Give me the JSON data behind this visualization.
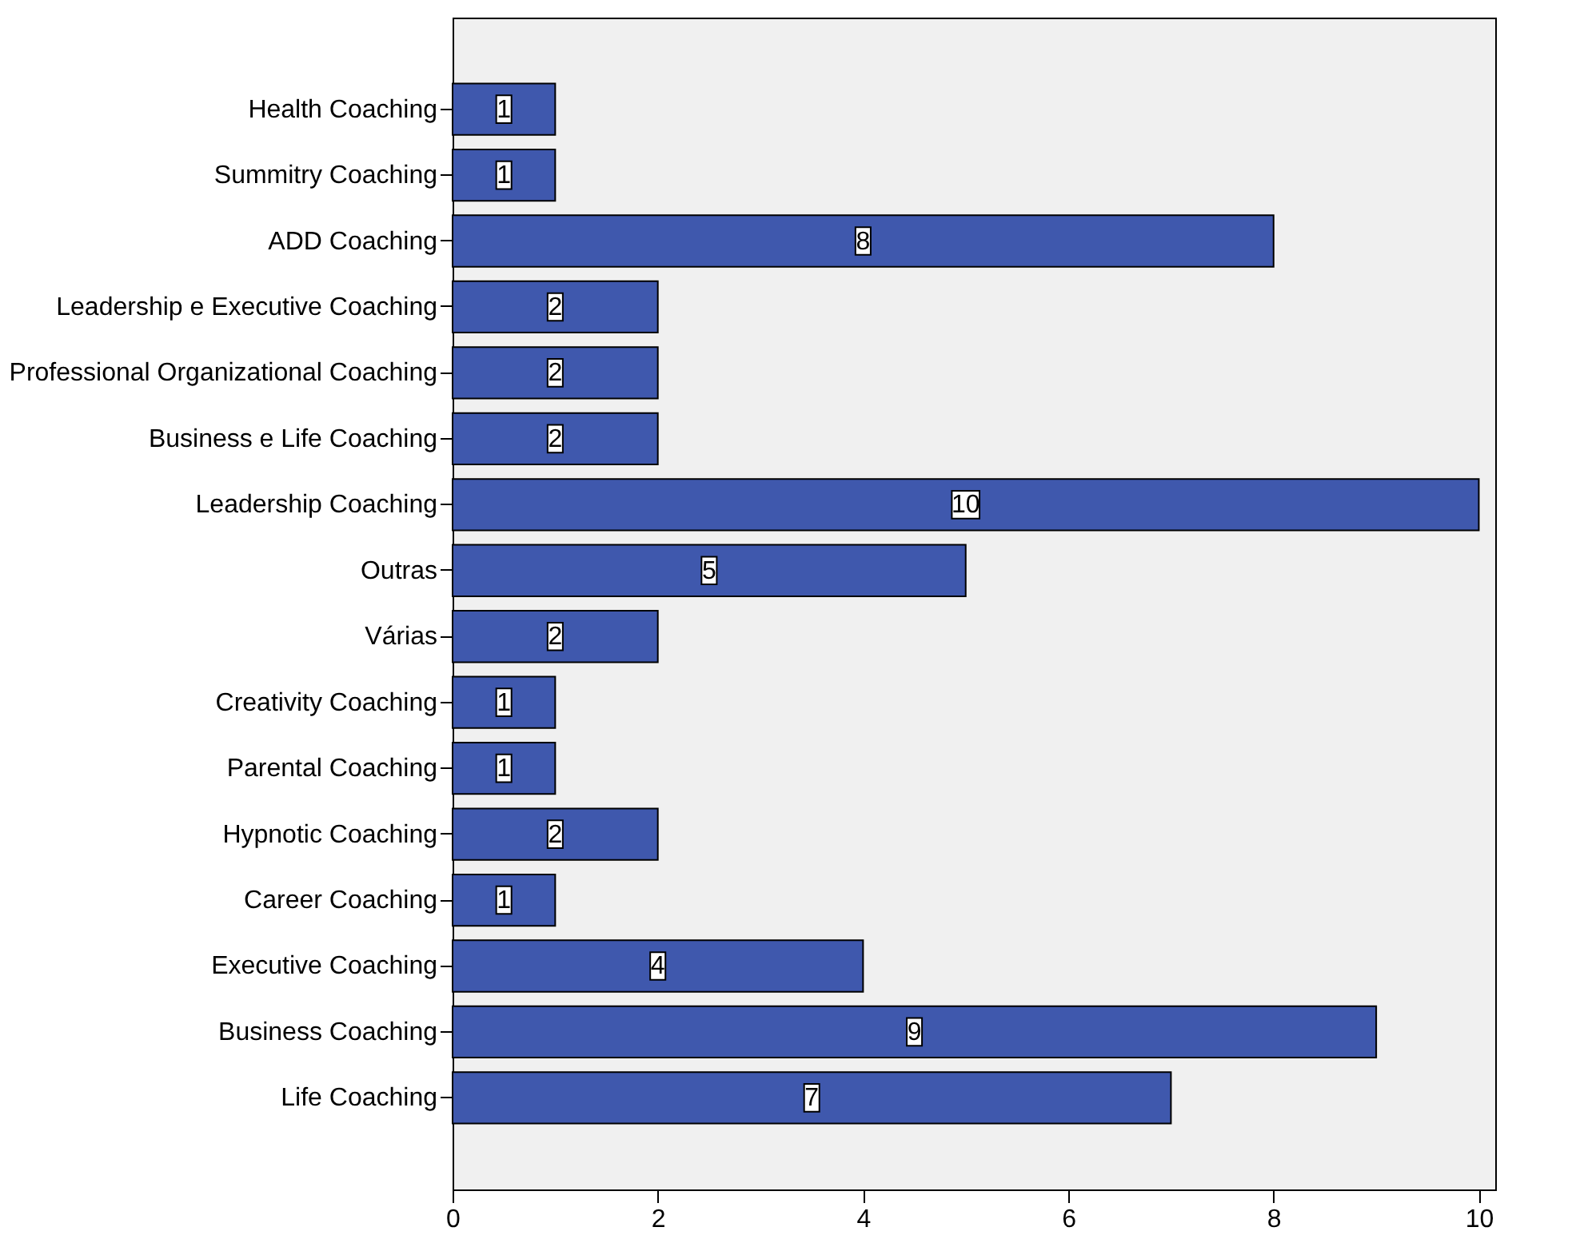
{
  "chart_data": {
    "type": "bar",
    "orientation": "horizontal",
    "categories": [
      "Health Coaching",
      "Summitry Coaching",
      "ADD Coaching",
      "Leadership e Executive Coaching",
      "Professional Organizational Coaching",
      "Business e Life Coaching",
      "Leadership Coaching",
      "Outras",
      "Várias",
      "Creativity Coaching",
      "Parental Coaching",
      "Hypnotic Coaching",
      "Career Coaching",
      "Executive Coaching",
      "Business Coaching",
      "Life Coaching"
    ],
    "values": [
      1,
      1,
      8,
      2,
      2,
      2,
      10,
      5,
      2,
      1,
      1,
      2,
      1,
      4,
      9,
      7
    ],
    "color": "#3f58ad",
    "xlim": [
      0,
      10.16
    ],
    "xticks": [
      0,
      2,
      4,
      6,
      8,
      10
    ],
    "data_labels": true,
    "grid": false
  }
}
